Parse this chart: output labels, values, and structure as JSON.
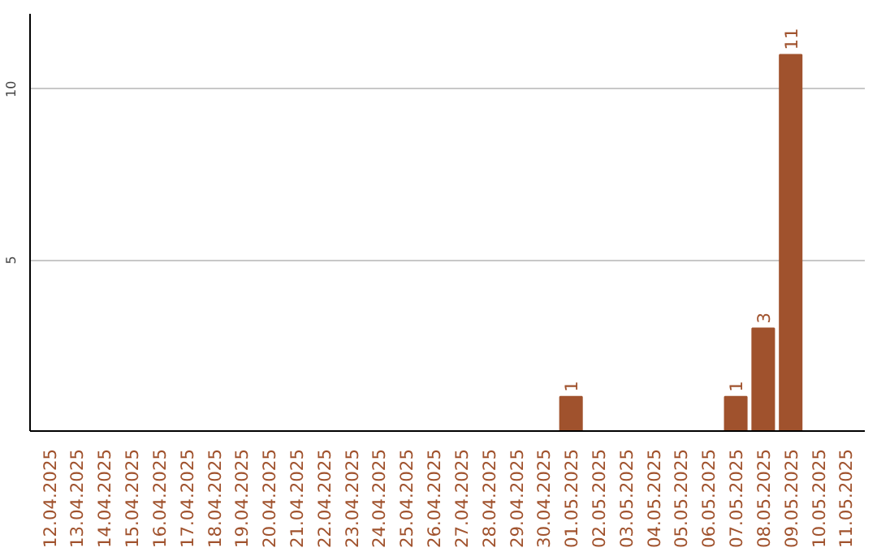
{
  "chart_data": {
    "type": "bar",
    "categories": [
      "12.04.2025",
      "13.04.2025",
      "14.04.2025",
      "15.04.2025",
      "16.04.2025",
      "17.04.2025",
      "18.04.2025",
      "19.04.2025",
      "20.04.2025",
      "21.04.2025",
      "22.04.2025",
      "23.04.2025",
      "24.04.2025",
      "25.04.2025",
      "26.04.2025",
      "27.04.2025",
      "28.04.2025",
      "29.04.2025",
      "30.04.2025",
      "01.05.2025",
      "02.05.2025",
      "03.05.2025",
      "04.05.2025",
      "05.05.2025",
      "06.05.2025",
      "07.05.2025",
      "08.05.2025",
      "09.05.2025",
      "10.05.2025",
      "11.05.2025"
    ],
    "values": [
      0,
      0,
      0,
      0,
      0,
      0,
      0,
      0,
      0,
      0,
      0,
      0,
      0,
      0,
      0,
      0,
      0,
      0,
      0,
      1,
      0,
      0,
      0,
      0,
      0,
      1,
      3,
      11,
      0,
      0
    ],
    "value_labels": [
      null,
      null,
      null,
      null,
      null,
      null,
      null,
      null,
      null,
      null,
      null,
      null,
      null,
      null,
      null,
      null,
      null,
      null,
      null,
      "1",
      null,
      null,
      null,
      null,
      null,
      "1",
      "3",
      "11",
      null,
      null
    ],
    "color": "#a0522d",
    "ylim": [
      0,
      12.2
    ],
    "yticks": [
      5,
      10
    ],
    "grid": "y"
  }
}
